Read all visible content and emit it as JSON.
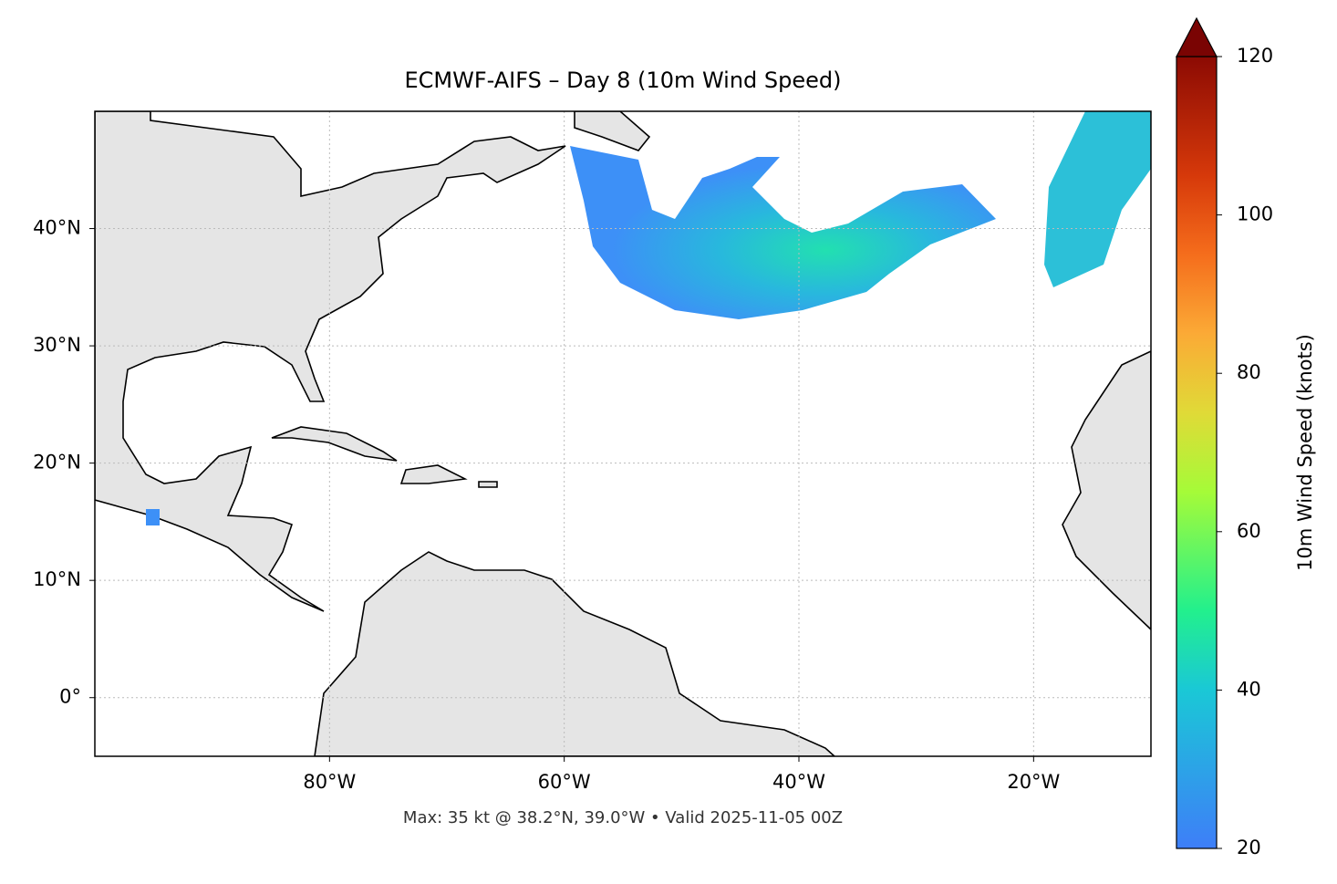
{
  "title": "ECMWF-AIFS – Day 8 (10m Wind Speed)",
  "footer": "Max: 35 kt @ 38.2°N, 39.0°W • Valid 2025-11-05 00Z",
  "map": {
    "xlim": [
      -100,
      -10
    ],
    "ylim": [
      -5,
      50
    ],
    "xticks": [
      {
        "value": -80,
        "label": "80°W"
      },
      {
        "value": -60,
        "label": "60°W"
      },
      {
        "value": -40,
        "label": "40°W"
      },
      {
        "value": -20,
        "label": "20°W"
      }
    ],
    "yticks": [
      {
        "value": 0,
        "label": "0°"
      },
      {
        "value": 10,
        "label": "10°N"
      },
      {
        "value": 20,
        "label": "20°N"
      },
      {
        "value": 30,
        "label": "30°N"
      },
      {
        "value": 40,
        "label": "40°N"
      }
    ],
    "grid": true
  },
  "colorbar": {
    "label": "10m Wind Speed (knots)",
    "lim": [
      20,
      120
    ],
    "ticks": [
      20,
      40,
      60,
      80,
      100,
      120
    ]
  }
}
